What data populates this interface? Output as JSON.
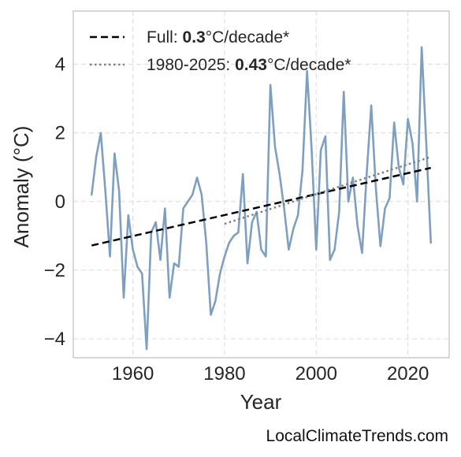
{
  "chart_data": {
    "type": "line",
    "xlabel": "Year",
    "ylabel": "Anomaly (°C)",
    "xlim": [
      1947,
      2029
    ],
    "ylim": [
      -4.55,
      5.55
    ],
    "xticks": [
      1960,
      1980,
      2000,
      2020
    ],
    "yticks": [
      -4,
      -2,
      0,
      2,
      4
    ],
    "ytick_labels": [
      "−4",
      "−2",
      "0",
      "2",
      "4"
    ],
    "grid": true,
    "legend_position": "top-left",
    "series": [
      {
        "style": "solid",
        "color": "#7f9fc1",
        "x": [
          1951,
          1952,
          1953,
          1954,
          1955,
          1956,
          1957,
          1958,
          1959,
          1960,
          1961,
          1962,
          1963,
          1964,
          1965,
          1966,
          1967,
          1968,
          1969,
          1970,
          1971,
          1972,
          1973,
          1974,
          1975,
          1976,
          1977,
          1978,
          1979,
          1980,
          1981,
          1982,
          1983,
          1984,
          1985,
          1986,
          1987,
          1988,
          1989,
          1990,
          1991,
          1992,
          1993,
          1994,
          1995,
          1996,
          1997,
          1998,
          1999,
          2000,
          2001,
          2002,
          2003,
          2004,
          2005,
          2006,
          2007,
          2008,
          2009,
          2010,
          2011,
          2012,
          2013,
          2014,
          2015,
          2016,
          2017,
          2018,
          2019,
          2020,
          2021,
          2022,
          2023,
          2024,
          2025
        ],
        "y": [
          0.2,
          1.3,
          2.0,
          0.3,
          -1.6,
          1.4,
          0.3,
          -2.8,
          -0.4,
          -1.4,
          -1.9,
          -2.1,
          -4.3,
          -0.9,
          -0.6,
          -1.7,
          -0.2,
          -2.8,
          -1.8,
          -1.9,
          -0.2,
          0.0,
          0.2,
          0.7,
          0.2,
          -1.2,
          -3.3,
          -2.9,
          -2.1,
          -1.6,
          -1.2,
          -1.0,
          -0.9,
          0.8,
          -1.8,
          -0.6,
          -0.3,
          -1.4,
          -1.6,
          3.4,
          1.6,
          0.8,
          -0.2,
          -1.4,
          -0.8,
          -0.4,
          0.9,
          3.8,
          1.5,
          -1.4,
          1.5,
          1.9,
          -1.7,
          -1.4,
          -0.3,
          3.2,
          0.0,
          0.7,
          -0.7,
          -1.5,
          0.8,
          2.8,
          0.4,
          -1.3,
          -0.2,
          0.1,
          2.3,
          1.0,
          0.5,
          2.4,
          1.7,
          0.0,
          4.5,
          1.7,
          -1.2
        ]
      },
      {
        "name": "Full",
        "style": "dashed",
        "color": "#000000",
        "x": [
          1951,
          2025
        ],
        "y": [
          -1.28,
          0.98
        ]
      },
      {
        "name": "1980-2025",
        "style": "dotted",
        "color": "#808080",
        "x": [
          1980,
          2025
        ],
        "y": [
          -0.65,
          1.3
        ]
      }
    ],
    "legend": [
      {
        "prefix": "Full: ",
        "value": "0.3",
        "suffix": "°C/decade*",
        "style": "dashed",
        "color": "#000000"
      },
      {
        "prefix": "1980-2025: ",
        "value": "0.43",
        "suffix": "°C/decade*",
        "style": "dotted",
        "color": "#808080"
      }
    ]
  },
  "credit": "LocalClimateTrends.com"
}
